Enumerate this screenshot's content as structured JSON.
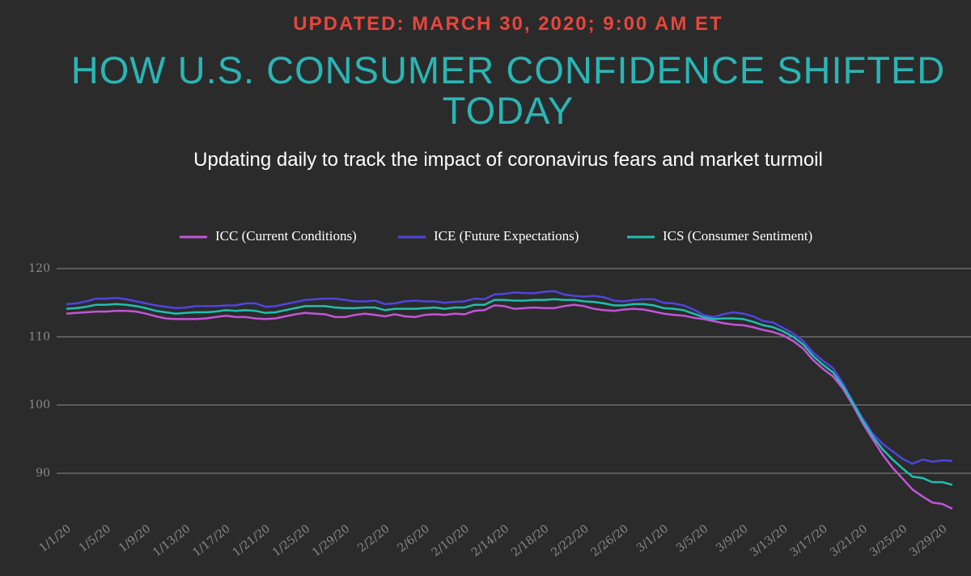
{
  "updated": "UPDATED: MARCH 30, 2020; 9:00 AM ET",
  "chart_data": {
    "type": "line",
    "title": "HOW U.S. CONSUMER CONFIDENCE SHIFTED TODAY",
    "subtitle": "Updating daily to track the impact of coronavirus fears and market turmoil",
    "categories": [
      "1/1/20",
      null,
      null,
      null,
      "1/5/20",
      null,
      null,
      null,
      "1/9/20",
      null,
      null,
      null,
      "1/13/20",
      null,
      null,
      null,
      "1/17/20",
      null,
      null,
      null,
      "1/21/20",
      null,
      null,
      null,
      "1/25/20",
      null,
      null,
      null,
      "1/29/20",
      null,
      null,
      null,
      "2/2/20",
      null,
      null,
      null,
      "2/6/20",
      null,
      null,
      null,
      "2/10/20",
      null,
      null,
      null,
      "2/14/20",
      null,
      null,
      null,
      "2/18/20",
      null,
      null,
      null,
      "2/22/20",
      null,
      null,
      null,
      "2/26/20",
      null,
      null,
      null,
      "3/1/20",
      null,
      null,
      null,
      "3/5/20",
      null,
      null,
      null,
      "3/9/20",
      null,
      null,
      null,
      "3/13/20",
      null,
      null,
      null,
      "3/17/20",
      null,
      null,
      null,
      "3/21/20",
      null,
      null,
      null,
      "3/25/20",
      null,
      null,
      null,
      "3/29/20",
      null
    ],
    "series": [
      {
        "name": "ICC (Current Conditions)",
        "color": "#c254d8",
        "values": [
          113.4,
          113.5,
          113.6,
          113.7,
          113.7,
          113.8,
          113.8,
          113.7,
          113.4,
          113.0,
          112.7,
          112.6,
          112.6,
          112.6,
          112.7,
          112.9,
          113.1,
          112.9,
          112.9,
          112.7,
          112.6,
          112.7,
          113.0,
          113.3,
          113.5,
          113.4,
          113.3,
          112.9,
          112.9,
          113.2,
          113.4,
          113.2,
          113.0,
          113.3,
          113.0,
          112.9,
          113.2,
          113.3,
          113.2,
          113.4,
          113.3,
          113.8,
          113.9,
          114.6,
          114.5,
          114.1,
          114.2,
          114.3,
          114.2,
          114.2,
          114.5,
          114.7,
          114.5,
          114.1,
          113.9,
          113.8,
          114.0,
          114.1,
          114.0,
          113.7,
          113.4,
          113.2,
          113.1,
          112.8,
          112.6,
          112.3,
          112.0,
          111.8,
          111.7,
          111.4,
          111.0,
          110.7,
          110.2,
          109.4,
          108.3,
          106.6,
          105.3,
          104.2,
          102.4,
          100.0,
          97.3,
          95.0,
          92.7,
          90.8,
          89.2,
          87.6,
          86.6,
          85.7,
          85.5,
          84.8
        ]
      },
      {
        "name": "ICE (Future Expectations)",
        "color": "#5044e0",
        "values": [
          114.8,
          114.9,
          115.2,
          115.6,
          115.6,
          115.7,
          115.5,
          115.2,
          114.9,
          114.6,
          114.4,
          114.2,
          114.3,
          114.5,
          114.5,
          114.5,
          114.6,
          114.6,
          114.9,
          114.9,
          114.4,
          114.5,
          114.8,
          115.1,
          115.4,
          115.5,
          115.6,
          115.6,
          115.4,
          115.2,
          115.2,
          115.3,
          114.8,
          114.9,
          115.2,
          115.3,
          115.2,
          115.2,
          115.0,
          115.1,
          115.2,
          115.6,
          115.5,
          116.2,
          116.3,
          116.5,
          116.4,
          116.4,
          116.6,
          116.7,
          116.2,
          116.0,
          115.9,
          116.0,
          115.8,
          115.3,
          115.2,
          115.4,
          115.5,
          115.5,
          115.0,
          114.9,
          114.6,
          114.0,
          113.2,
          112.9,
          113.3,
          113.6,
          113.4,
          113.0,
          112.3,
          112.1,
          111.3,
          110.5,
          109.4,
          107.7,
          106.5,
          105.4,
          103.2,
          100.5,
          98.0,
          95.8,
          94.3,
          93.2,
          92.1,
          91.4,
          92.0,
          91.7,
          91.9,
          91.8
        ]
      },
      {
        "name": "ICS (Consumer Sentiment)",
        "color": "#1fbfb0",
        "values": [
          114.1,
          114.2,
          114.4,
          114.7,
          114.7,
          114.8,
          114.7,
          114.5,
          114.2,
          113.8,
          113.6,
          113.4,
          113.5,
          113.6,
          113.6,
          113.7,
          113.9,
          113.8,
          113.9,
          113.8,
          113.5,
          113.6,
          113.9,
          114.2,
          114.5,
          114.5,
          114.5,
          114.3,
          114.2,
          114.2,
          114.3,
          114.3,
          113.9,
          114.1,
          114.1,
          114.1,
          114.2,
          114.3,
          114.1,
          114.3,
          114.3,
          114.7,
          114.7,
          115.4,
          115.4,
          115.3,
          115.3,
          115.4,
          115.4,
          115.5,
          115.4,
          115.4,
          115.2,
          115.1,
          114.9,
          114.6,
          114.6,
          114.8,
          114.8,
          114.6,
          114.2,
          114.1,
          113.9,
          113.4,
          112.9,
          112.6,
          112.7,
          112.7,
          112.6,
          112.2,
          111.7,
          111.4,
          110.8,
          110.0,
          108.9,
          107.2,
          105.9,
          104.8,
          102.8,
          100.3,
          97.7,
          95.4,
          93.5,
          92.0,
          90.7,
          89.5,
          89.3,
          88.7,
          88.7,
          88.3
        ]
      }
    ],
    "ylim": [
      84,
      120
    ],
    "yticks": [
      90,
      100,
      110,
      120
    ],
    "grid": true,
    "legend": "top"
  }
}
